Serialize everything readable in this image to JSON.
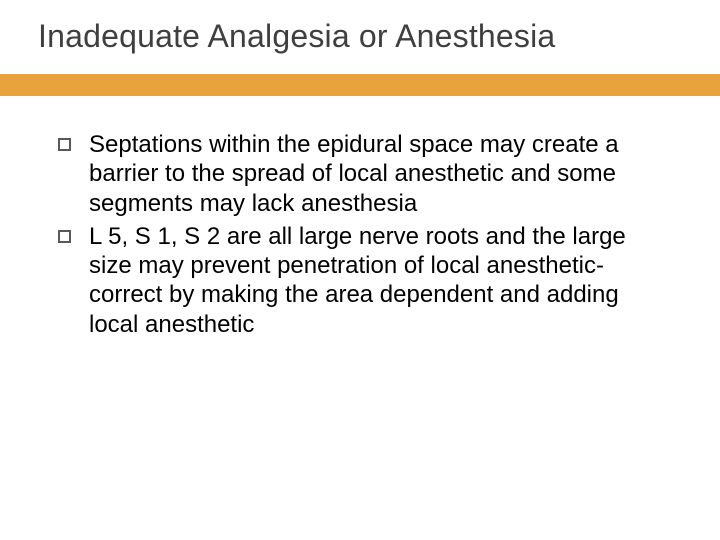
{
  "slide": {
    "title": "Inadequate Analgesia or Anesthesia",
    "accent_color": "#e8a33d",
    "rule_color": "#e8a33d",
    "title_color": "#3f3f3f",
    "title_fontsize": 32,
    "body_fontsize": 24,
    "body_color": "#000000",
    "bullet_border_color": "#595959",
    "background_color": "#ffffff",
    "bullets": [
      "Septations within the epidural space may create a barrier to the spread of local anesthetic and some segments may lack anesthesia",
      "L 5, S 1, S 2 are all large nerve roots and the large size may prevent penetration of local anesthetic- correct by making the area dependent and adding local anesthetic"
    ]
  }
}
